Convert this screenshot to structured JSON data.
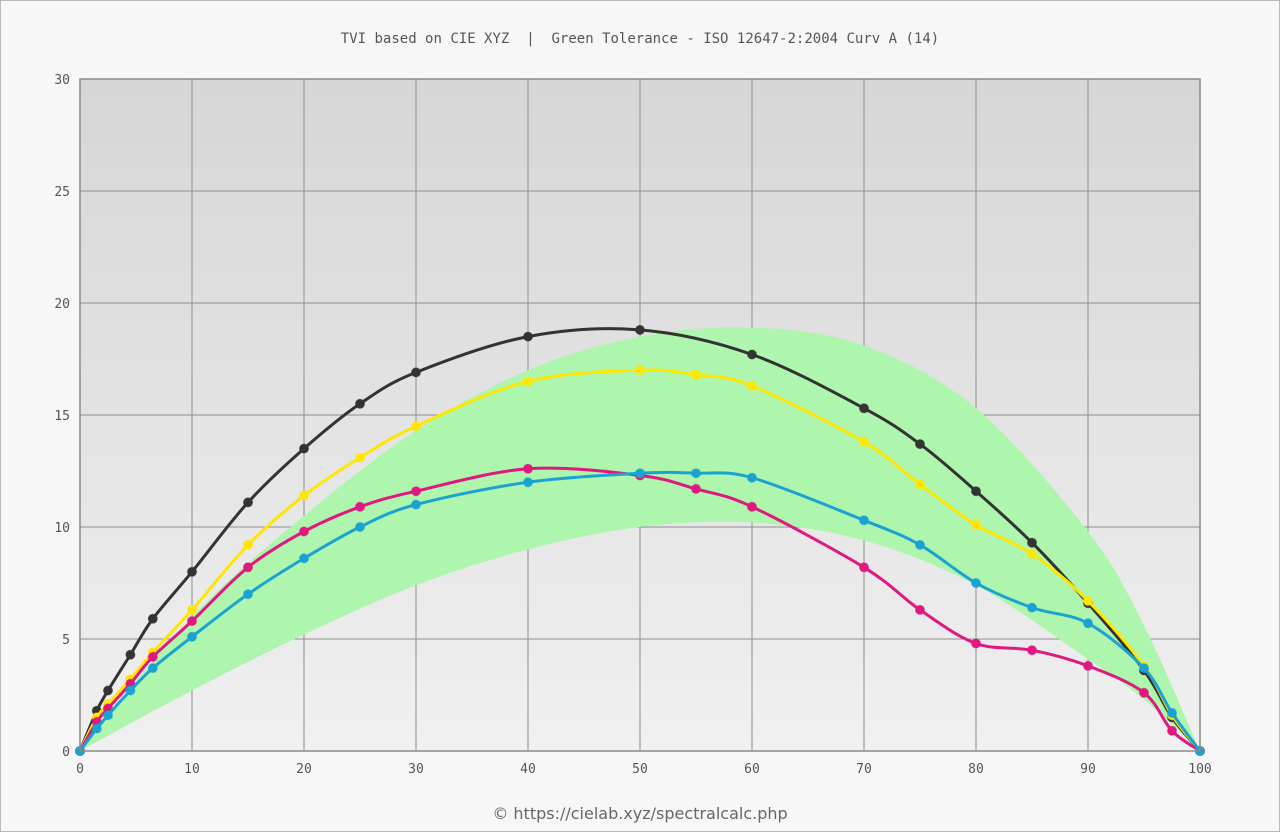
{
  "chart_data": {
    "type": "line",
    "title": "TVI based on CIE XYZ  |  Green Tolerance - ISO 12647-2:2004 Curv A (14)",
    "xlabel": "",
    "ylabel": "",
    "xlim": [
      0,
      100
    ],
    "ylim": [
      0,
      30
    ],
    "xticks": [
      "0",
      "10",
      "20",
      "30",
      "40",
      "50",
      "60",
      "70",
      "80",
      "90",
      "100"
    ],
    "yticks": [
      "0",
      "5",
      "10",
      "15",
      "20",
      "25",
      "30"
    ],
    "grid": true,
    "legend": "none",
    "tolerance_band": {
      "color": "#aef5ae",
      "x": [
        0,
        10,
        20,
        30,
        40,
        50,
        60,
        70,
        80,
        90,
        95,
        100
      ],
      "lower": [
        0,
        2.7,
        5.2,
        7.4,
        9.0,
        10.0,
        10.2,
        9.4,
        7.4,
        4.1,
        2.3,
        0
      ],
      "upper": [
        0,
        6.0,
        10.5,
        14.3,
        17.0,
        18.5,
        18.9,
        18.1,
        15.3,
        9.8,
        5.6,
        0
      ]
    },
    "series": [
      {
        "color": "#333333",
        "x": [
          0,
          1.5,
          2.5,
          4.5,
          6.5,
          10,
          15,
          20,
          25,
          30,
          40,
          50,
          60,
          70,
          75,
          80,
          85,
          90,
          95,
          97.5,
          100
        ],
        "y": [
          0,
          1.8,
          2.7,
          4.3,
          5.9,
          8.0,
          11.1,
          13.5,
          15.5,
          16.9,
          18.5,
          18.8,
          17.7,
          15.3,
          13.7,
          11.6,
          9.3,
          6.6,
          3.6,
          1.5,
          0
        ]
      },
      {
        "color": "#ffe600",
        "x": [
          0,
          1.5,
          2.5,
          4.5,
          6.5,
          10,
          15,
          20,
          25,
          30,
          40,
          50,
          55,
          60,
          70,
          75,
          80,
          85,
          90,
          95,
          97.5,
          100
        ],
        "y": [
          0,
          1.5,
          2.1,
          3.2,
          4.4,
          6.3,
          9.2,
          11.4,
          13.1,
          14.5,
          16.5,
          17.0,
          16.8,
          16.3,
          13.8,
          11.9,
          10.1,
          8.8,
          6.7,
          3.8,
          1.6,
          0
        ]
      },
      {
        "color": "#e0187f",
        "x": [
          0,
          1.5,
          2.5,
          4.5,
          6.5,
          10,
          15,
          20,
          25,
          30,
          40,
          50,
          55,
          60,
          70,
          75,
          80,
          85,
          90,
          95,
          97.5,
          100
        ],
        "y": [
          0,
          1.3,
          1.9,
          3.0,
          4.2,
          5.8,
          8.2,
          9.8,
          10.9,
          11.6,
          12.6,
          12.3,
          11.7,
          10.9,
          8.2,
          6.3,
          4.8,
          4.5,
          3.8,
          2.6,
          0.9,
          0
        ]
      },
      {
        "color": "#1aa3d1",
        "x": [
          0,
          1.5,
          2.5,
          4.5,
          6.5,
          10,
          15,
          20,
          25,
          30,
          40,
          50,
          55,
          60,
          70,
          75,
          80,
          85,
          90,
          95,
          97.5,
          100
        ],
        "y": [
          0,
          1.0,
          1.6,
          2.7,
          3.7,
          5.1,
          7.0,
          8.6,
          10.0,
          11.0,
          12.0,
          12.4,
          12.4,
          12.2,
          10.3,
          9.2,
          7.5,
          6.4,
          5.7,
          3.7,
          1.7,
          0
        ]
      }
    ]
  },
  "footer": "© https://cielab.xyz/spectralcalc.php"
}
